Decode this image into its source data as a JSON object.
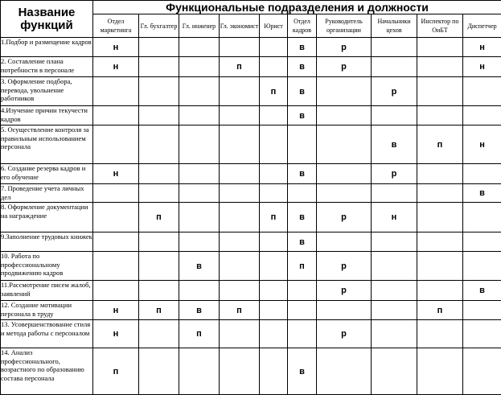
{
  "header": {
    "function_title": "Название функций",
    "group_title": "Функциональные подразделения и должности",
    "columns": [
      "Отдел маркетинга",
      "Гл. бухгалтер",
      "Гл. инженер",
      "Гл. экономист",
      "Юрист",
      "Отдел кадров",
      "Руководитель организации",
      "Начальники цехов",
      "Инспектор по ОиБТ",
      "Диспетчер"
    ]
  },
  "rows": [
    {
      "label": "1.Подбор и размещение кадров",
      "cells": [
        "н",
        "",
        "",
        "",
        "",
        "в",
        "р",
        "",
        "",
        "н"
      ]
    },
    {
      "label": "2. Составление плана потребности в персонале",
      "cells": [
        "н",
        "",
        "",
        "п",
        "",
        "в",
        "р",
        "",
        "",
        "н"
      ]
    },
    {
      "label": "3. Оформление подбора, перевода, увольнение работников",
      "cells": [
        "",
        "",
        "",
        "",
        "п",
        "в",
        "",
        "р",
        "",
        ""
      ]
    },
    {
      "label": "4.Изучение причин текучести кадров",
      "cells": [
        "",
        "",
        "",
        "",
        "",
        "в",
        "",
        "",
        "",
        ""
      ]
    },
    {
      "label": "5. Осуществление контроля за правильным использованием персонала",
      "cells": [
        "",
        "",
        "",
        "",
        "",
        "",
        "",
        "в",
        "п",
        "н"
      ]
    },
    {
      "label": "6. Создание резерва кадров и его обучение",
      "cells": [
        "н",
        "",
        "",
        "",
        "",
        "в",
        "",
        "р",
        "",
        ""
      ]
    },
    {
      "label": "7. Проведение учета личных дел",
      "cells": [
        "",
        "",
        "",
        "",
        "",
        "",
        "",
        "",
        "",
        "в"
      ]
    },
    {
      "label": "8. Оформление документации на награждение",
      "cells": [
        "",
        "п",
        "",
        "",
        "п",
        "в",
        "р",
        "н",
        "",
        ""
      ]
    },
    {
      "label": "9.Заполнение трудовых книжек",
      "cells": [
        "",
        "",
        "",
        "",
        "",
        "в",
        "",
        "",
        "",
        ""
      ]
    },
    {
      "label": "10. Работа по профессиональному продвижению кадров",
      "cells": [
        "",
        "",
        "в",
        "",
        "",
        "п",
        "р",
        "",
        "",
        ""
      ]
    },
    {
      "label": "11.Рассмотрение писем жалоб, заявлений",
      "cells": [
        "",
        "",
        "",
        "",
        "",
        "",
        "р",
        "",
        "",
        "в"
      ]
    },
    {
      "label": "12. Создание мотивации персонала в труду",
      "cells": [
        "н",
        "п",
        "в",
        "п",
        "",
        "",
        "",
        "",
        "п",
        ""
      ]
    },
    {
      "label": "13. Усовершенствование стиля и метода работы с персоналом",
      "cells": [
        "н",
        "",
        "п",
        "",
        "",
        "",
        "р",
        "",
        "",
        ""
      ]
    },
    {
      "label": "14. Анализ профессионального, возрастного по образованию состава персонала",
      "cells": [
        "п",
        "",
        "",
        "",
        "",
        "в",
        "",
        "",
        "",
        ""
      ]
    }
  ]
}
